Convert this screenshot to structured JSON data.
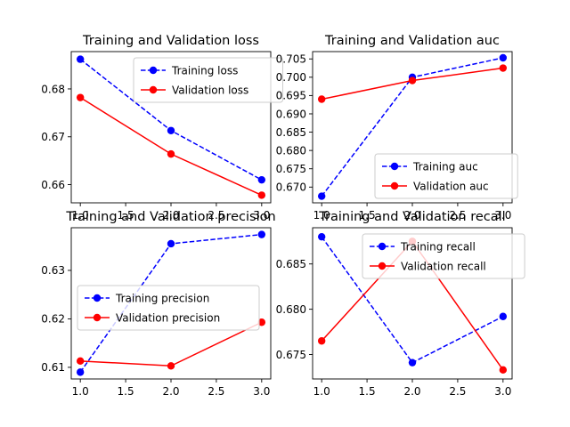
{
  "chart_data": [
    {
      "type": "line",
      "title": "Training and Validation loss",
      "x": [
        1.0,
        2.0,
        3.0
      ],
      "xlim": [
        0.9,
        3.1
      ],
      "ylim": [
        0.6562,
        0.6878
      ],
      "xticks": [
        "1.0",
        "1.5",
        "2.0",
        "2.5",
        "3.0"
      ],
      "yticks": [
        "0.66",
        "0.67",
        "0.68"
      ],
      "legend_position": "top-right",
      "series": [
        {
          "name": "Training loss",
          "values": [
            0.6862,
            0.6713,
            0.661
          ],
          "color": "#0000ff",
          "linestyle": "dashed"
        },
        {
          "name": "Validation loss",
          "values": [
            0.6782,
            0.6664,
            0.6578
          ],
          "color": "#ff0000",
          "linestyle": "solid"
        }
      ]
    },
    {
      "type": "line",
      "title": "Training and Validation auc",
      "x": [
        1.0,
        2.0,
        3.0
      ],
      "xlim": [
        0.9,
        3.1
      ],
      "ylim": [
        0.6657,
        0.707
      ],
      "xticks": [
        "1.0",
        "1.5",
        "2.0",
        "2.5",
        "3.0"
      ],
      "yticks": [
        "0.670",
        "0.675",
        "0.680",
        "0.685",
        "0.690",
        "0.695",
        "0.700",
        "0.705"
      ],
      "legend_position": "bottom-right",
      "series": [
        {
          "name": "Training auc",
          "values": [
            0.6675,
            0.7,
            0.7053
          ],
          "color": "#0000ff",
          "linestyle": "dashed"
        },
        {
          "name": "Validation auc",
          "values": [
            0.694,
            0.6991,
            0.7025
          ],
          "color": "#ff0000",
          "linestyle": "solid"
        }
      ]
    },
    {
      "type": "line",
      "title": "Training and Validation precision",
      "x": [
        1.0,
        2.0,
        3.0
      ],
      "xlim": [
        0.9,
        3.1
      ],
      "ylim": [
        0.6076,
        0.6388
      ],
      "xticks": [
        "1.0",
        "1.5",
        "2.0",
        "2.5",
        "3.0"
      ],
      "yticks": [
        "0.61",
        "0.62",
        "0.63"
      ],
      "legend_position": "center-right",
      "series": [
        {
          "name": "Training precision",
          "values": [
            0.609,
            0.6355,
            0.6374
          ],
          "color": "#0000ff",
          "linestyle": "dashed"
        },
        {
          "name": "Validation precision",
          "values": [
            0.6113,
            0.6103,
            0.6193
          ],
          "color": "#ff0000",
          "linestyle": "solid"
        }
      ]
    },
    {
      "type": "line",
      "title": "Training and Validation recall",
      "x": [
        1.0,
        2.0,
        3.0
      ],
      "xlim": [
        0.9,
        3.1
      ],
      "ylim": [
        0.6723,
        0.689
      ],
      "xticks": [
        "1.0",
        "1.5",
        "2.0",
        "2.5",
        "3.0"
      ],
      "yticks": [
        "0.675",
        "0.680",
        "0.685"
      ],
      "legend_position": "top-right",
      "series": [
        {
          "name": "Training recall",
          "values": [
            0.688,
            0.6741,
            0.6792
          ],
          "color": "#0000ff",
          "linestyle": "dashed"
        },
        {
          "name": "Validation recall",
          "values": [
            0.6765,
            0.6875,
            0.6733
          ],
          "color": "#ff0000",
          "linestyle": "solid"
        }
      ]
    }
  ]
}
